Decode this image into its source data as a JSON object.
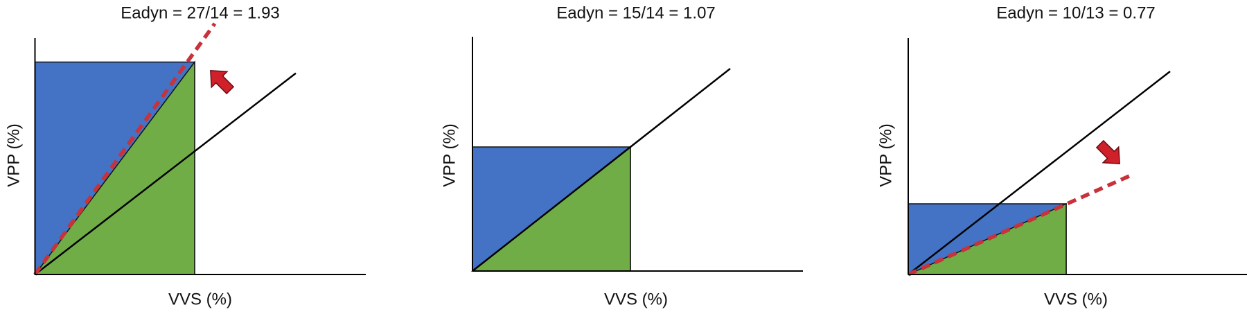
{
  "panels": [
    {
      "title": "Eadyn = 27/14 = 1.93",
      "x_label": "VVS (%)",
      "y_label": "VPP (%)"
    },
    {
      "title": "Eadyn = 15/14 = 1.07",
      "x_label": "VVS (%)",
      "y_label": "VPP (%)"
    },
    {
      "title": "Eadyn = 10/13 = 0.77",
      "x_label": "VVS (%)",
      "y_label": "VPP (%)"
    }
  ]
}
